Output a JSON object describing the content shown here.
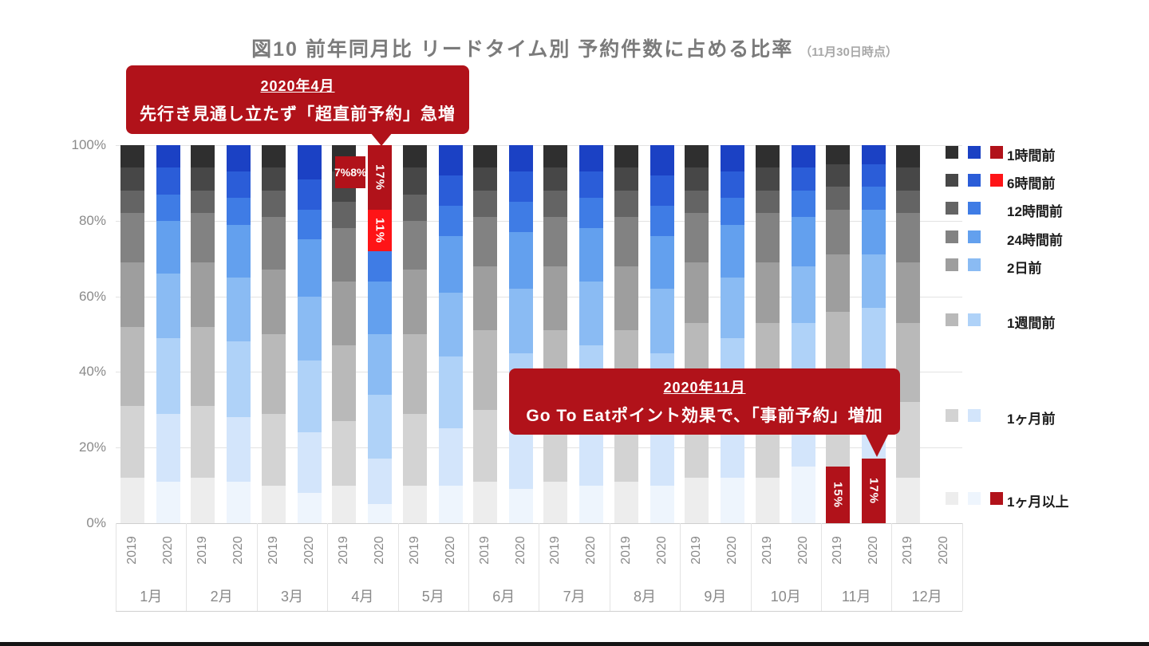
{
  "title": {
    "main": "図10 前年同月比 リードタイム別 予約件数に占める比率",
    "note": "（11月30日時点）"
  },
  "chart_data": {
    "type": "bar",
    "stacked": true,
    "stack_unit": "percent_of_total",
    "ylim": [
      0,
      100
    ],
    "grid": true,
    "legend_position": "right",
    "y_ticks": [
      "100%",
      "80%",
      "60%",
      "40%",
      "20%",
      "0%"
    ],
    "series_order_top_to_bottom": [
      "1時間前",
      "6時間前",
      "12時間前",
      "24時間前",
      "2日前",
      "1週間前",
      "1ヶ月前",
      "1ヶ月以上"
    ],
    "colors_2019": [
      "#2f2f2f",
      "#474747",
      "#646464",
      "#828282",
      "#9e9e9e",
      "#b9b9b9",
      "#d3d3d3",
      "#ededed"
    ],
    "colors_2020": [
      "#1b41c4",
      "#2b5dd8",
      "#3f7ce5",
      "#63a0ee",
      "#8abbf3",
      "#afd2f8",
      "#d3e5fb",
      "#eef5fd"
    ],
    "months": [
      {
        "label": "1月",
        "values_2019": [
          6,
          6,
          6,
          13,
          17,
          21,
          19,
          12
        ],
        "values_2020": [
          6,
          7,
          7,
          14,
          17,
          20,
          18,
          11
        ]
      },
      {
        "label": "2月",
        "values_2019": [
          6,
          6,
          6,
          13,
          17,
          21,
          19,
          12
        ],
        "values_2020": [
          7,
          7,
          7,
          14,
          17,
          20,
          17,
          11
        ]
      },
      {
        "label": "3月",
        "values_2019": [
          6,
          6,
          7,
          14,
          17,
          21,
          19,
          10
        ],
        "values_2020": [
          9,
          8,
          8,
          15,
          17,
          19,
          16,
          8
        ]
      },
      {
        "label": "4月",
        "values_2019": [
          7,
          8,
          7,
          14,
          17,
          20,
          17,
          10
        ],
        "values_2020": [
          17,
          11,
          8,
          14,
          16,
          17,
          12,
          5
        ],
        "overrides_2020": [
          {
            "index": 0,
            "color": "#b1121a",
            "label": "17%"
          },
          {
            "index": 1,
            "color": "#fe1417",
            "label": "11%"
          }
        ],
        "outside_label_2019": {
          "text": "7%8%",
          "color": "#b1121a"
        }
      },
      {
        "label": "5月",
        "values_2019": [
          6,
          7,
          7,
          13,
          17,
          21,
          19,
          10
        ],
        "values_2020": [
          8,
          8,
          8,
          15,
          17,
          19,
          15,
          10
        ]
      },
      {
        "label": "6月",
        "values_2019": [
          6,
          6,
          7,
          13,
          17,
          21,
          19,
          11
        ],
        "values_2020": [
          7,
          8,
          8,
          15,
          17,
          20,
          16,
          9
        ]
      },
      {
        "label": "7月",
        "values_2019": [
          6,
          6,
          7,
          13,
          17,
          21,
          19,
          11
        ],
        "values_2020": [
          7,
          7,
          8,
          14,
          17,
          20,
          17,
          10
        ]
      },
      {
        "label": "8月",
        "values_2019": [
          6,
          6,
          7,
          13,
          17,
          21,
          19,
          11
        ],
        "values_2020": [
          8,
          8,
          8,
          14,
          17,
          19,
          16,
          10
        ]
      },
      {
        "label": "9月",
        "values_2019": [
          6,
          6,
          6,
          13,
          16,
          21,
          20,
          12
        ],
        "values_2020": [
          7,
          7,
          7,
          14,
          16,
          20,
          17,
          12
        ]
      },
      {
        "label": "10月",
        "values_2019": [
          6,
          6,
          6,
          13,
          16,
          21,
          20,
          12
        ],
        "values_2020": [
          6,
          6,
          7,
          13,
          15,
          19,
          19,
          15
        ]
      },
      {
        "label": "11月",
        "values_2019": [
          5,
          6,
          6,
          12,
          15,
          20,
          21,
          15
        ],
        "values_2020": [
          5,
          6,
          6,
          12,
          14,
          19,
          21,
          17
        ],
        "overrides_2019": [
          {
            "index": 7,
            "color": "#b1121a",
            "label": "15%"
          }
        ],
        "overrides_2020": [
          {
            "index": 7,
            "color": "#b1121a",
            "label": "17%"
          }
        ]
      },
      {
        "label": "12月",
        "values_2019": [
          6,
          6,
          6,
          13,
          16,
          21,
          20,
          12
        ],
        "values_2020": null
      }
    ]
  },
  "x_axis": {
    "year_labels": [
      "2019",
      "2020"
    ]
  },
  "legend": {
    "rows": [
      {
        "label": "1時間前",
        "swatches": {
          "y2019": "#2f2f2f",
          "y2020": "#1b41c4",
          "highlight": "#b1121a"
        }
      },
      {
        "label": "6時間前",
        "swatches": {
          "y2019": "#474747",
          "y2020": "#2b5dd8",
          "highlight": "#fe1417"
        }
      },
      {
        "label": "12時間前",
        "swatches": {
          "y2019": "#646464",
          "y2020": "#3f7ce5"
        }
      },
      {
        "label": "24時間前",
        "swatches": {
          "y2019": "#828282",
          "y2020": "#63a0ee"
        }
      },
      {
        "label": "2日前",
        "swatches": {
          "y2019": "#9e9e9e",
          "y2020": "#8abbf3"
        }
      },
      {
        "label": "1週間前",
        "swatches": {
          "y2019": "#b9b9b9",
          "y2020": "#afd2f8"
        }
      },
      {
        "label": "1ヶ月前",
        "swatches": {
          "y2019": "#d3d3d3",
          "y2020": "#d3e5fb"
        }
      },
      {
        "label": "1ヶ月以上",
        "swatches": {
          "y2019": "#ededed",
          "y2020": "#eef5fd",
          "highlight": "#b1121a"
        }
      }
    ]
  },
  "callouts": {
    "april": {
      "title": "2020年4月",
      "body": "先行き見通し立たず「超直前予約」急増"
    },
    "november": {
      "title": "2020年11月",
      "body": "Go To Eatポイント効果で、「事前予約」増加"
    }
  }
}
